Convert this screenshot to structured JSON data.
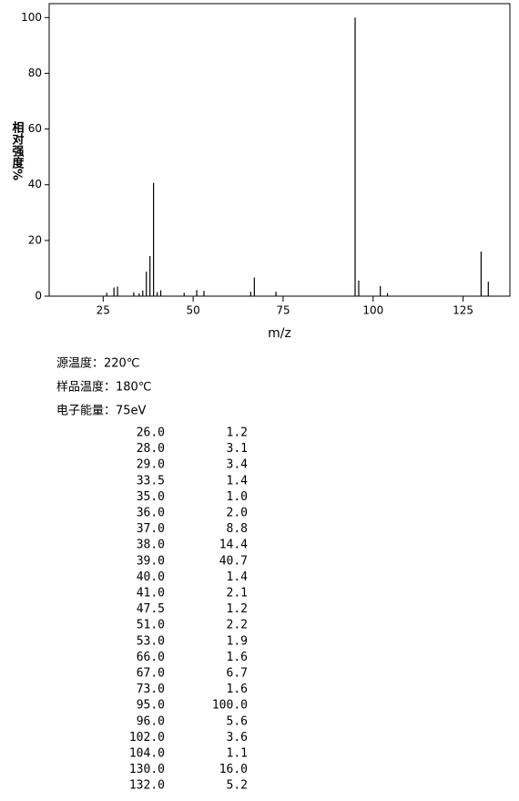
{
  "chart_data": {
    "type": "bar",
    "xlabel": "m/z",
    "ylabel": "相对强度%",
    "x": [
      26,
      28,
      29,
      33.5,
      35,
      36,
      37,
      38,
      39,
      40,
      41,
      47.5,
      51,
      53,
      66,
      67,
      73,
      95,
      96,
      102,
      104,
      130,
      132
    ],
    "x_labels": [
      "26.0",
      "28.0",
      "29.0",
      "33.5",
      "35.0",
      "36.0",
      "37.0",
      "38.0",
      "39.0",
      "40.0",
      "41.0",
      "47.5",
      "51.0",
      "53.0",
      "66.0",
      "67.0",
      "73.0",
      "95.0",
      "96.0",
      "102.0",
      "104.0",
      "130.0",
      "132.0"
    ],
    "values": [
      1.2,
      3.1,
      3.4,
      1.4,
      1.0,
      2.0,
      8.8,
      14.4,
      40.7,
      1.4,
      2.1,
      1.2,
      2.2,
      1.9,
      1.6,
      6.7,
      1.6,
      100.0,
      5.6,
      3.6,
      1.1,
      16.0,
      5.2
    ],
    "value_labels": [
      "1.2",
      "3.1",
      "3.4",
      "1.4",
      "1.0",
      "2.0",
      "8.8",
      "14.4",
      "40.7",
      "1.4",
      "2.1",
      "1.2",
      "2.2",
      "1.9",
      "1.6",
      "6.7",
      "1.6",
      "100.0",
      "5.6",
      "3.6",
      "1.1",
      "16.0",
      "5.2"
    ],
    "color": "#000000",
    "xlim": [
      10,
      138
    ],
    "xticks": [
      25,
      50,
      75,
      100,
      125
    ],
    "ylim": [
      0,
      105
    ],
    "yticks": [
      0,
      20,
      40,
      60,
      80,
      100
    ],
    "grid": false
  },
  "info": [
    "源温度：220℃",
    "样品温度：180℃",
    "电子能量：75eV"
  ]
}
